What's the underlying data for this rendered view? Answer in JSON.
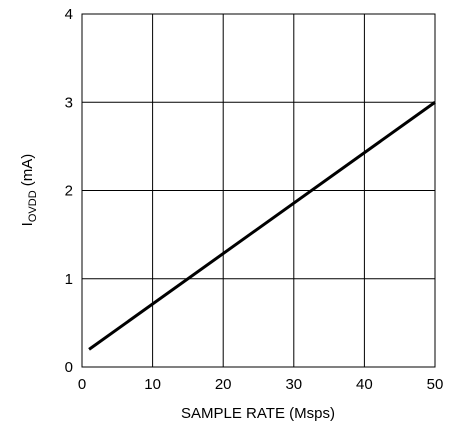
{
  "chart_data": {
    "type": "line",
    "title": "",
    "xlabel": "SAMPLE RATE (Msps)",
    "ylabel": {
      "main": "I",
      "subscript": "OVDD",
      "suffix": " (mA)"
    },
    "xlim": [
      0,
      50
    ],
    "ylim": [
      0,
      4
    ],
    "x_ticks": [
      "0",
      "10",
      "20",
      "30",
      "40",
      "50"
    ],
    "y_ticks": [
      "0",
      "1",
      "2",
      "3",
      "4"
    ],
    "grid": true,
    "legend": "none",
    "series": [
      {
        "x": [
          1,
          50
        ],
        "y": [
          0.2,
          3.0
        ],
        "color": "#000000"
      }
    ]
  }
}
